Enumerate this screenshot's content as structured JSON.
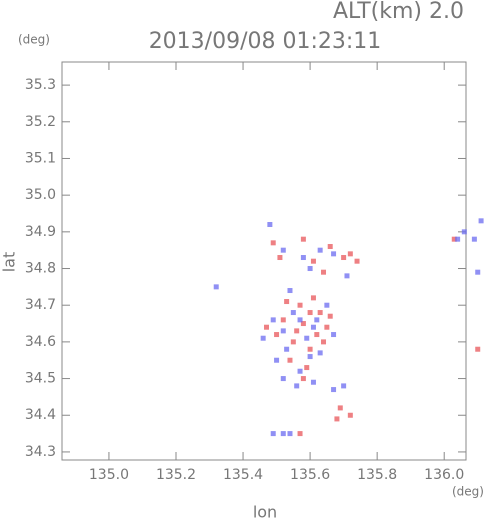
{
  "chart_data": {
    "type": "scatter",
    "title": "2013/09/08 01:23:11",
    "subtitle": "ALT(km) 2.0",
    "y_unit": "(deg)",
    "x_unit": "(deg)",
    "x_label": "lon",
    "y_label": "lat",
    "xlim": [
      134.86,
      136.065
    ],
    "ylim": [
      34.278,
      35.363
    ],
    "xticks": [
      {
        "value": 135.0,
        "label": "135.0"
      },
      135.2,
      135.4,
      135.6,
      135.8,
      {
        "value": 136.0,
        "label": "136.0"
      }
    ],
    "yticks": [
      34.3,
      34.4,
      34.5,
      34.6,
      34.7,
      34.8,
      34.9,
      {
        "value": 35.0,
        "label": "35.0"
      },
      35.1,
      35.2,
      35.3
    ],
    "series": [
      {
        "color": "#e8555a",
        "x": [
          135.58,
          135.62,
          135.55,
          135.6,
          135.52,
          135.63,
          135.57,
          135.5,
          135.65,
          135.54,
          135.59,
          135.61,
          135.47,
          135.56,
          135.64,
          135.53,
          135.66,
          135.58,
          135.6,
          135.49,
          135.51,
          135.61,
          135.64,
          135.7,
          135.74,
          135.66,
          135.58,
          135.72,
          135.68,
          135.69,
          135.72,
          135.57,
          136.03,
          136.1
        ],
        "values": [
          34.65,
          34.62,
          34.6,
          34.58,
          34.66,
          34.68,
          34.7,
          34.62,
          34.64,
          34.55,
          34.53,
          34.72,
          34.64,
          34.63,
          34.6,
          34.71,
          34.67,
          34.5,
          34.68,
          34.87,
          34.83,
          34.82,
          34.79,
          34.83,
          34.82,
          34.86,
          34.88,
          34.84,
          34.39,
          34.42,
          34.4,
          34.35,
          34.88,
          34.58
        ]
      },
      {
        "color": "#6b6bf0",
        "x": [
          135.57,
          135.61,
          135.53,
          135.63,
          135.49,
          135.55,
          135.59,
          135.65,
          135.52,
          135.6,
          135.57,
          135.62,
          135.46,
          135.67,
          135.54,
          135.56,
          135.61,
          135.5,
          135.48,
          135.52,
          135.6,
          135.67,
          135.71,
          135.63,
          135.58,
          135.7,
          135.67,
          135.52,
          135.49,
          135.54,
          135.32,
          136.06,
          136.09,
          136.11,
          136.1,
          136.04,
          135.52
        ],
        "values": [
          34.66,
          34.64,
          34.58,
          34.57,
          34.66,
          34.68,
          34.61,
          34.7,
          34.63,
          34.56,
          34.52,
          34.66,
          34.61,
          34.62,
          34.74,
          34.48,
          34.49,
          34.55,
          34.92,
          34.85,
          34.8,
          34.84,
          34.78,
          34.85,
          34.83,
          34.48,
          34.47,
          34.35,
          34.35,
          34.35,
          34.75,
          34.9,
          34.88,
          34.93,
          34.79,
          34.88,
          34.5
        ]
      }
    ]
  }
}
